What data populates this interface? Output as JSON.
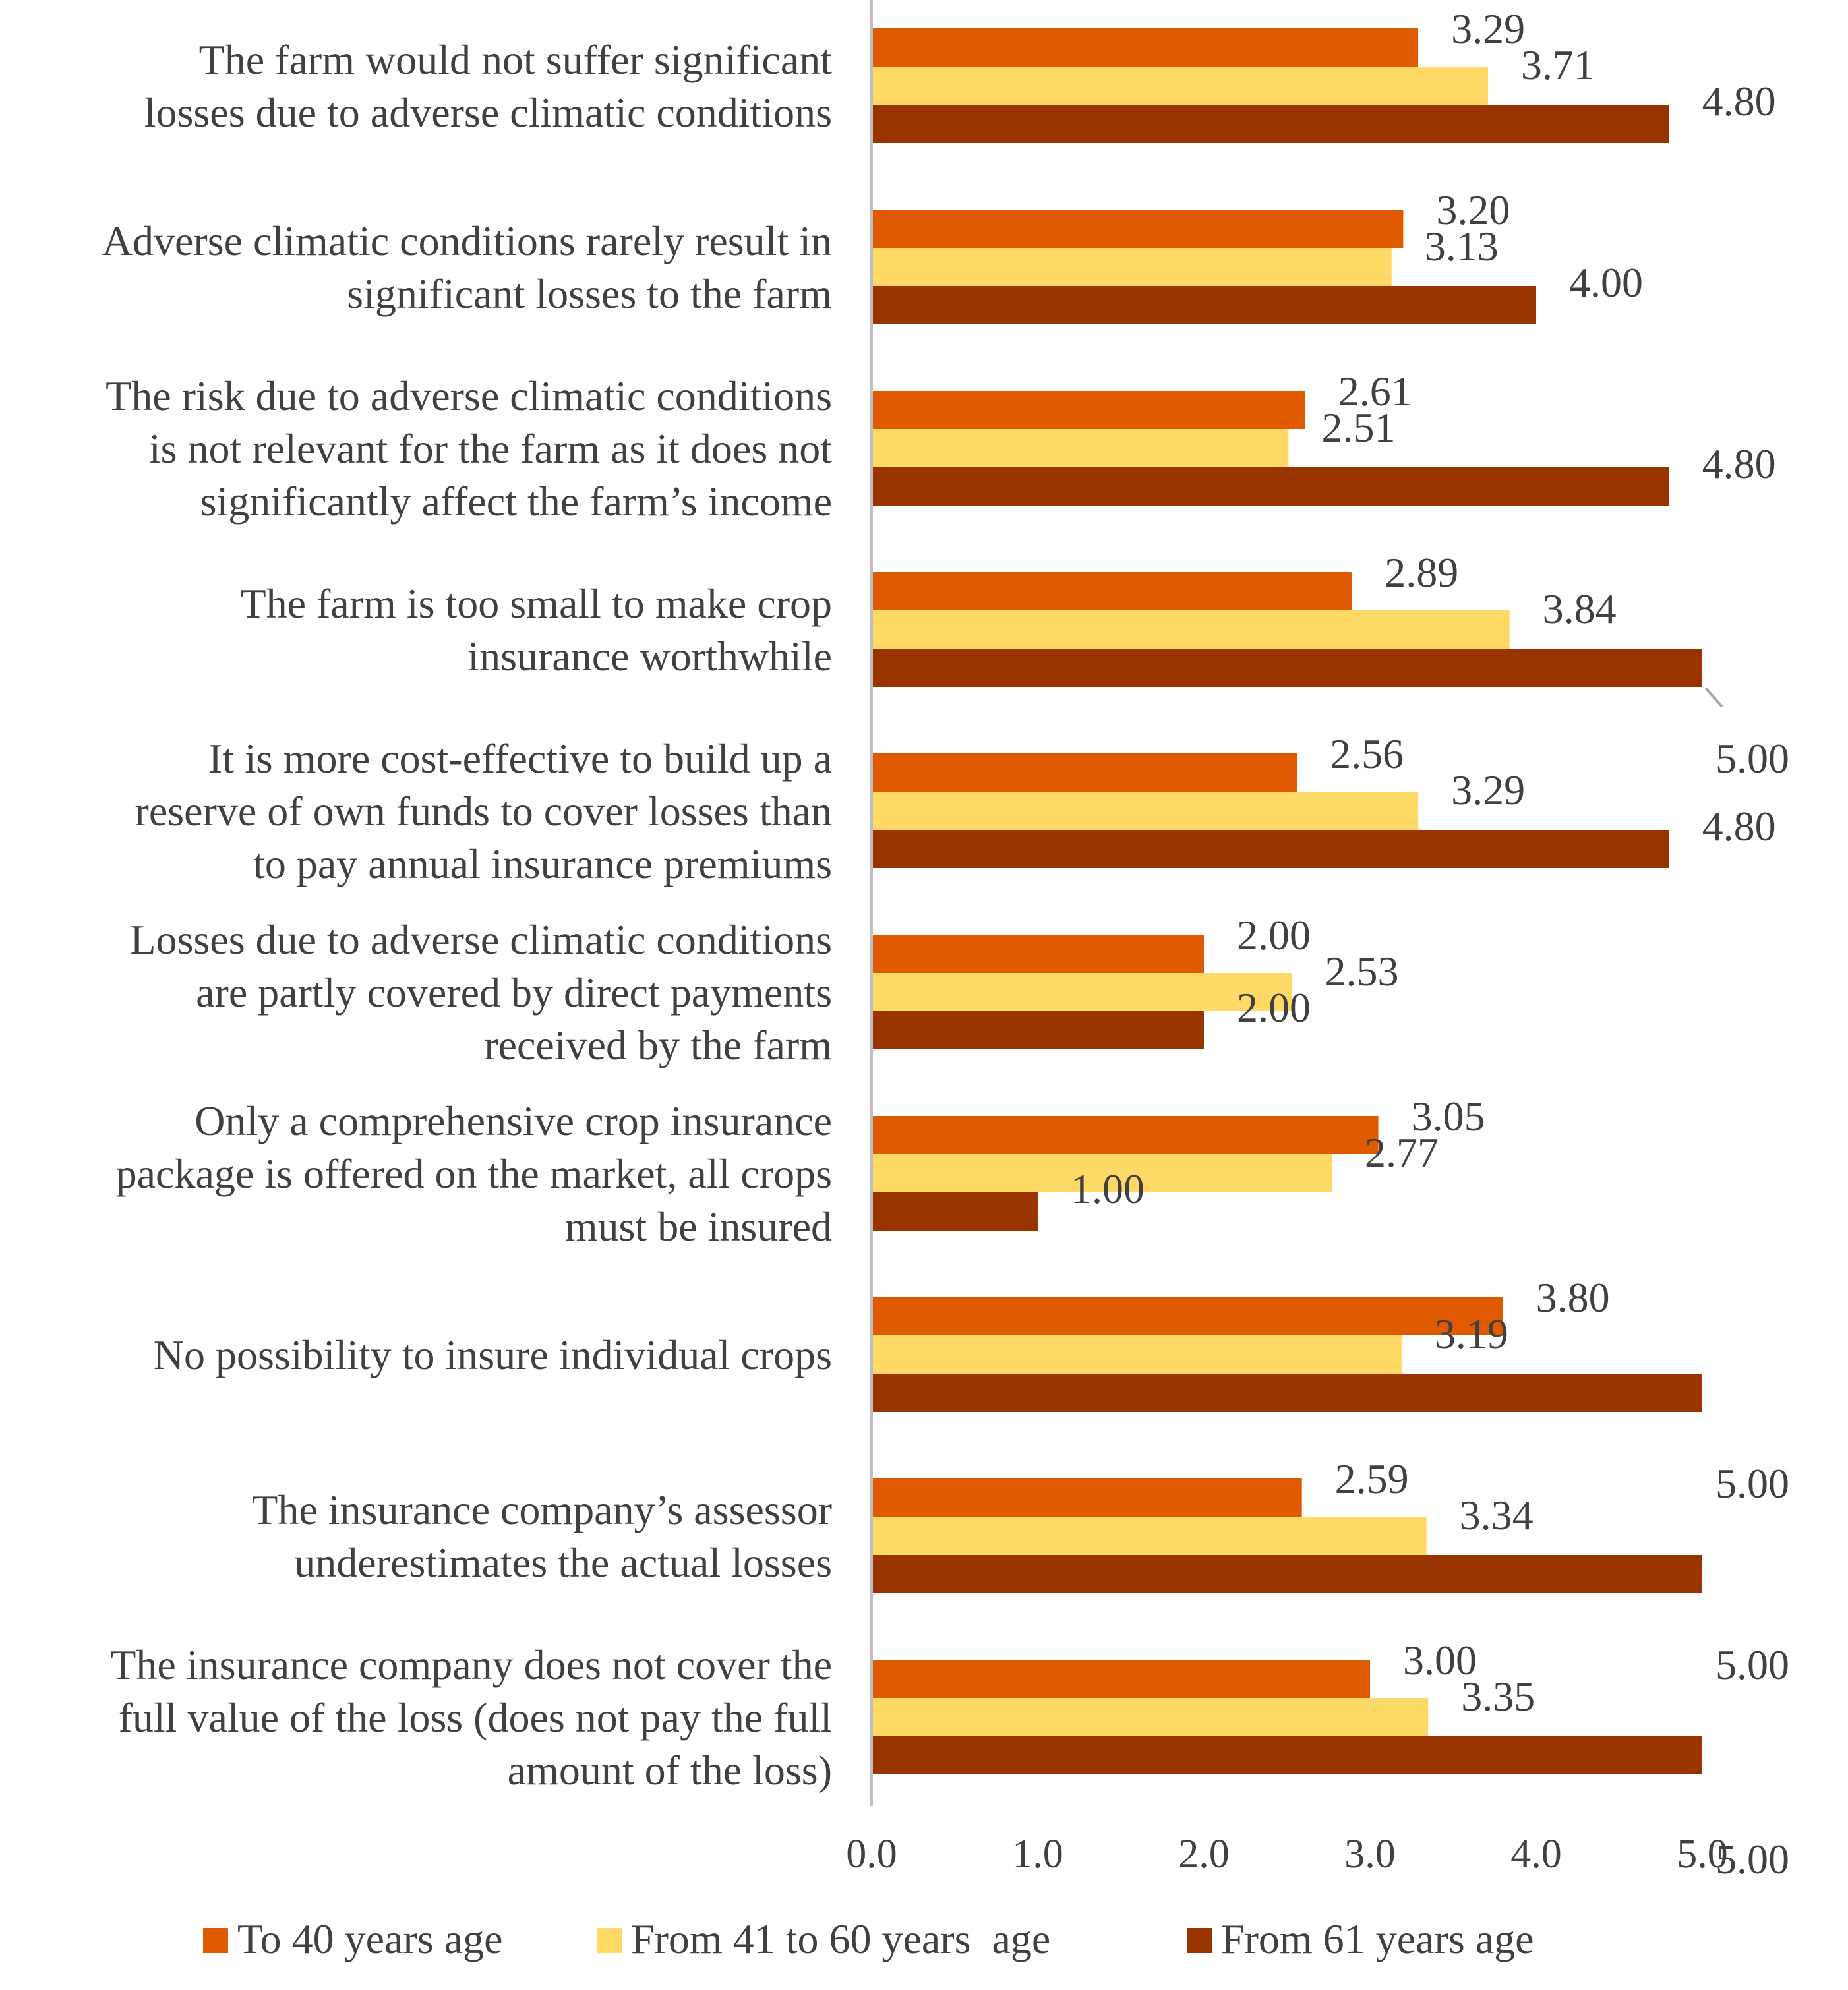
{
  "chart_data": {
    "type": "bar",
    "orientation": "horizontal",
    "categories": [
      [
        "The farm would not suffer significant",
        "losses due to adverse climatic conditions"
      ],
      [
        "Adverse climatic conditions rarely result in",
        "significant losses to the farm"
      ],
      [
        "The risk due to adverse climatic conditions",
        "is not relevant for the farm as it does not",
        "significantly affect the farm’s income"
      ],
      [
        "The farm is too small to make crop",
        "insurance worthwhile"
      ],
      [
        "It is more cost-effective to build up a",
        "reserve of own funds to cover losses than",
        "to pay annual insurance premiums"
      ],
      [
        "Losses due to adverse climatic conditions",
        "are partly covered by direct payments",
        "received by the farm"
      ],
      [
        "Only a comprehensive crop insurance",
        "package is offered on the market, all crops",
        "must be insured"
      ],
      [
        "No possibility to insure individual crops"
      ],
      [
        "The insurance company’s assessor",
        "underestimates the actual losses"
      ],
      [
        "The insurance company does not cover the",
        "full value of the loss (does not pay the full",
        "amount of the loss)"
      ]
    ],
    "series": [
      {
        "name": "To 40 years age",
        "color": "#E05A00",
        "values": [
          3.29,
          3.2,
          2.61,
          2.89,
          2.56,
          2.0,
          3.05,
          3.8,
          2.59,
          3.0
        ],
        "labels": [
          "3.29",
          "3.20",
          "2.61",
          "2.89",
          "2.56",
          "2.00",
          "3.05",
          "3.80",
          "2.59",
          "3.00"
        ]
      },
      {
        "name": "From 41 to 60 years  age",
        "color": "#FFD966",
        "values": [
          3.71,
          3.13,
          2.51,
          3.84,
          3.29,
          2.53,
          2.77,
          3.19,
          3.34,
          3.35
        ],
        "labels": [
          "3.71",
          "3.13",
          "2.51",
          "3.84",
          "3.29",
          "2.53",
          "2.77",
          "3.19",
          "3.34",
          "3.35"
        ]
      },
      {
        "name": "From 61 years age",
        "color": "#993300",
        "values": [
          4.8,
          4.0,
          4.8,
          5.0,
          4.8,
          2.0,
          1.0,
          5.0,
          5.0,
          5.0
        ],
        "labels": [
          "4.80",
          "4.00",
          "4.80",
          "5.00",
          "4.80",
          "2.00",
          "1.00",
          "5.00",
          "5.00",
          "5.00"
        ]
      }
    ],
    "xlim": [
      0,
      5
    ],
    "ticks": [
      "0.0",
      "1.0",
      "2.0",
      "3.0",
      "4.0",
      "5.0"
    ],
    "title": "",
    "xlabel": "",
    "ylabel": "",
    "legend_position": "bottom",
    "axis_color": "#BFBFBF",
    "label_color": "#404040"
  }
}
